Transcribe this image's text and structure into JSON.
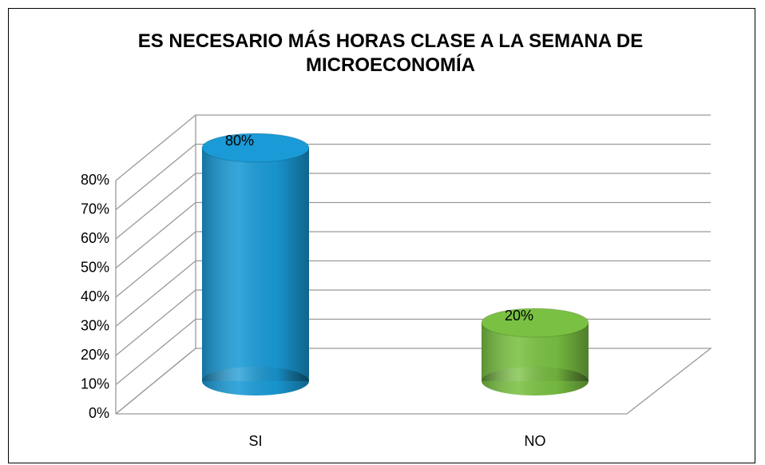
{
  "chart_data": {
    "type": "cylinder",
    "title": "ES NECESARIO MÁS HORAS CLASE A LA SEMANA DE MICROECONOMÍA",
    "categories": [
      "SI",
      "NO"
    ],
    "values": [
      80,
      20
    ],
    "value_labels": [
      "80%",
      "20%"
    ],
    "colors": [
      "#1a9ad6",
      "#7ac143"
    ],
    "ylim": [
      0,
      80
    ],
    "yticks": [
      {
        "value": 0,
        "label": "0%"
      },
      {
        "value": 10,
        "label": "10%"
      },
      {
        "value": 20,
        "label": "20%"
      },
      {
        "value": 30,
        "label": "30%"
      },
      {
        "value": 40,
        "label": "40%"
      },
      {
        "value": 50,
        "label": "50%"
      },
      {
        "value": 60,
        "label": "60%"
      },
      {
        "value": 70,
        "label": "70%"
      },
      {
        "value": 80,
        "label": "80%"
      }
    ],
    "grid": true
  }
}
